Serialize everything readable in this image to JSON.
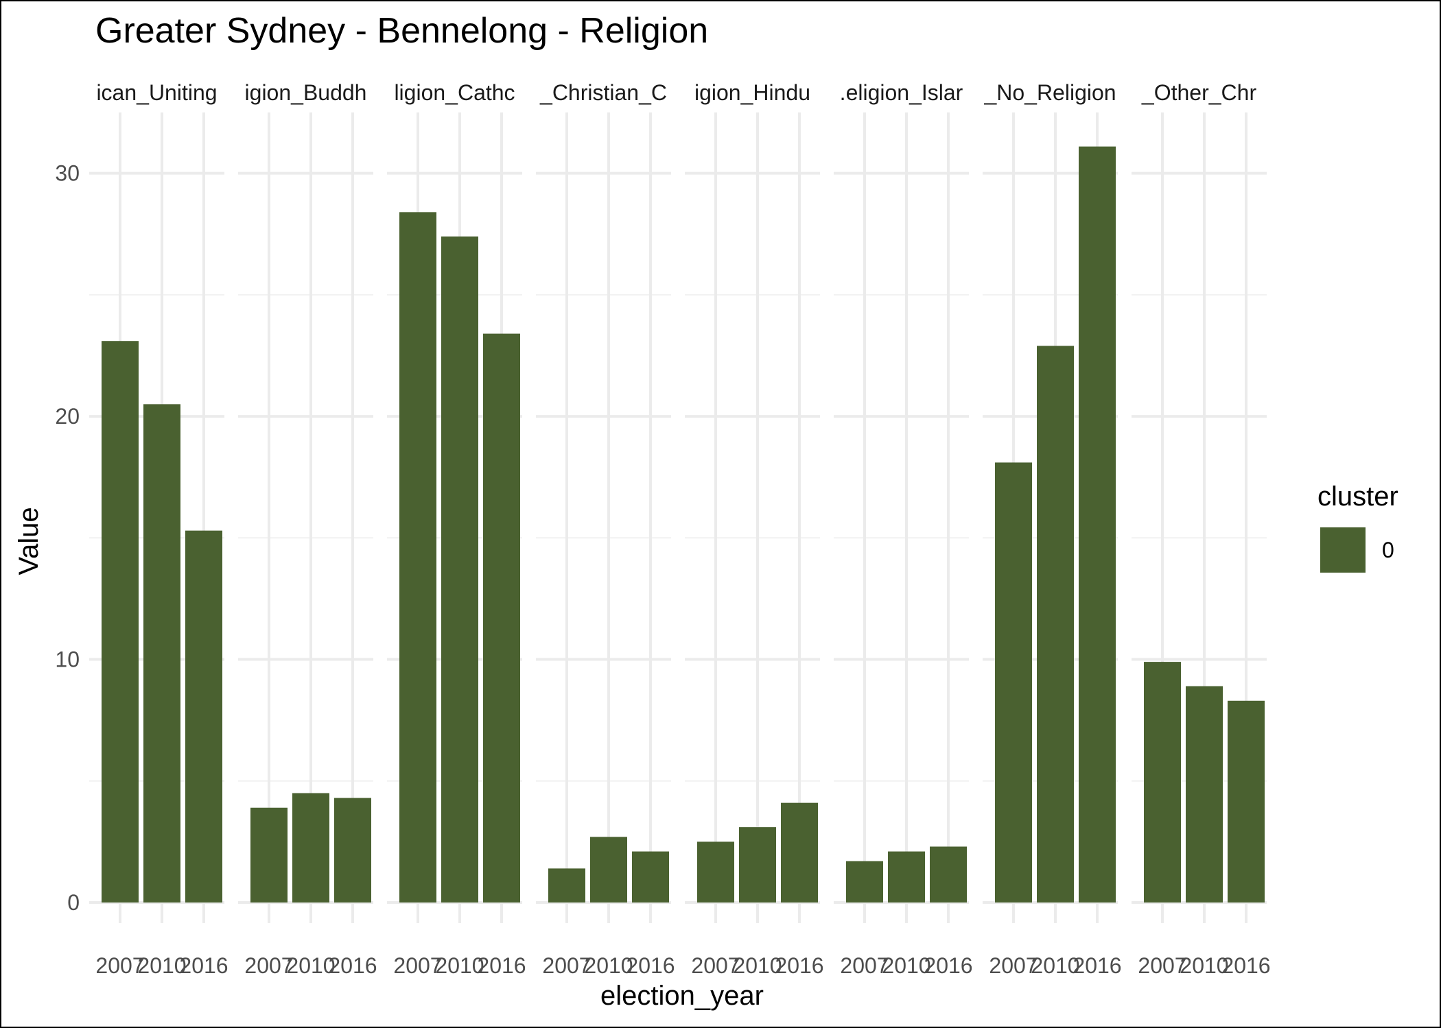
{
  "chart_data": {
    "type": "bar",
    "title": "Greater Sydney - Bennelong - Religion",
    "xlabel": "election_year",
    "ylabel": "Value",
    "ylim": [
      0,
      32.5
    ],
    "yticks": [
      0,
      10,
      20,
      30
    ],
    "grid": true,
    "facets": [
      {
        "label": "ican_Uniting",
        "categories": [
          "2007",
          "2010",
          "2016"
        ],
        "values": [
          23.1,
          20.5,
          15.3
        ]
      },
      {
        "label": "igion_Buddh",
        "categories": [
          "2007",
          "2010",
          "2016"
        ],
        "values": [
          3.9,
          4.5,
          4.3
        ]
      },
      {
        "label": "ligion_Cathc",
        "categories": [
          "2007",
          "2010",
          "2016"
        ],
        "values": [
          28.4,
          27.4,
          23.4
        ]
      },
      {
        "label": "_Christian_C",
        "categories": [
          "2007",
          "2010",
          "2016"
        ],
        "values": [
          1.4,
          2.7,
          2.1
        ]
      },
      {
        "label": "igion_Hindu",
        "categories": [
          "2007",
          "2010",
          "2016"
        ],
        "values": [
          2.5,
          3.1,
          4.1
        ]
      },
      {
        "label": ".eligion_Islar",
        "categories": [
          "2007",
          "2010",
          "2016"
        ],
        "values": [
          1.7,
          2.1,
          2.3
        ]
      },
      {
        "label": "_No_Religion",
        "categories": [
          "2007",
          "2010",
          "2016"
        ],
        "values": [
          18.1,
          22.9,
          31.1
        ]
      },
      {
        "label": "_Other_Chr",
        "categories": [
          "2007",
          "2010",
          "2016"
        ],
        "values": [
          9.9,
          8.9,
          8.3
        ]
      }
    ],
    "series": [
      {
        "name": "0",
        "color": "#4a6130"
      }
    ],
    "legend": {
      "title": "cluster",
      "placement": "right"
    }
  }
}
